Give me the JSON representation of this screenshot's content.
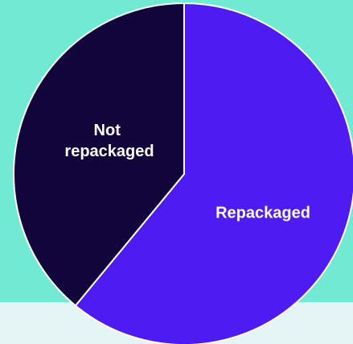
{
  "colors": {
    "background_top": "#71EAD3",
    "background_bottom": "#E5F4F4",
    "slice_border": "#FFFFFF"
  },
  "chart_data": {
    "type": "pie",
    "title": "",
    "slices": [
      {
        "label": "Repackaged",
        "value": 61,
        "color": "#4E1CF2"
      },
      {
        "label": "Not repackaged",
        "value": 39,
        "color": "#12053B"
      }
    ]
  }
}
